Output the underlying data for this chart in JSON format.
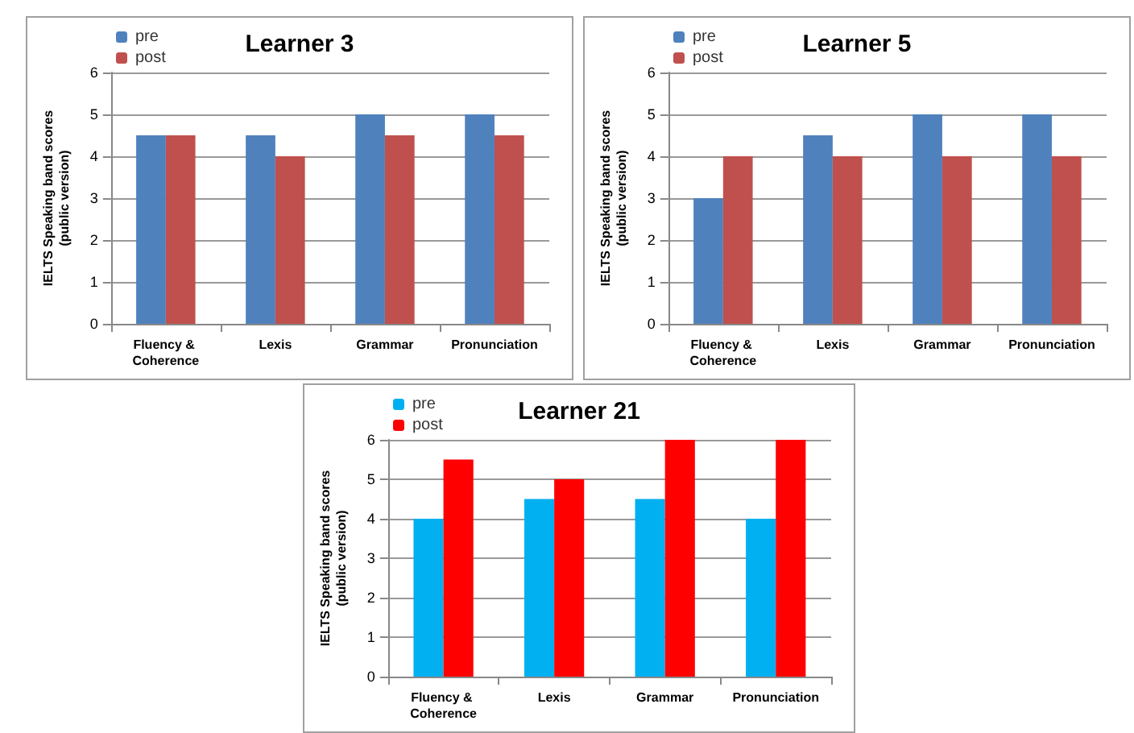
{
  "chart_data": [
    {
      "type": "bar",
      "title": "Learner 3",
      "ylabel": "IELTS Speaking band scores\n(public version)",
      "categories": [
        "Fluency & Coherence",
        "Lexis",
        "Grammar",
        "Pronunciation"
      ],
      "series": [
        {
          "name": "pre",
          "color": "#4f81bd",
          "values": [
            4.5,
            4.5,
            5,
            5
          ]
        },
        {
          "name": "post",
          "color": "#c0504d",
          "values": [
            4.5,
            4,
            4.5,
            4.5
          ]
        }
      ],
      "ylim": [
        0,
        6
      ],
      "yticks": [
        0,
        1,
        2,
        3,
        4,
        5,
        6
      ],
      "grid": "y",
      "legend": "top left"
    },
    {
      "type": "bar",
      "title": "Learner 5",
      "ylabel": "IELTS Speaking band scores\n(public version)",
      "categories": [
        "Fluency & Coherence",
        "Lexis",
        "Grammar",
        "Pronunciation"
      ],
      "series": [
        {
          "name": "pre",
          "color": "#4f81bd",
          "values": [
            3,
            4.5,
            5,
            5
          ]
        },
        {
          "name": "post",
          "color": "#c0504d",
          "values": [
            4,
            4,
            4,
            4
          ]
        }
      ],
      "ylim": [
        0,
        6
      ],
      "yticks": [
        0,
        1,
        2,
        3,
        4,
        5,
        6
      ],
      "grid": "y",
      "legend": "top left"
    },
    {
      "type": "bar",
      "title": "Learner 21",
      "ylabel": "IELTS Speaking band scores\n(public version)",
      "categories": [
        "Fluency & Coherence",
        "Lexis",
        "Grammar",
        "Pronunciation"
      ],
      "series": [
        {
          "name": "pre",
          "color": "#00b0f0",
          "values": [
            4,
            4.5,
            4.5,
            4
          ]
        },
        {
          "name": "post",
          "color": "#ff0000",
          "values": [
            5.5,
            5,
            6,
            6
          ]
        }
      ],
      "ylim": [
        0,
        6
      ],
      "yticks": [
        0,
        1,
        2,
        3,
        4,
        5,
        6
      ],
      "grid": "y",
      "legend": "top left"
    }
  ]
}
